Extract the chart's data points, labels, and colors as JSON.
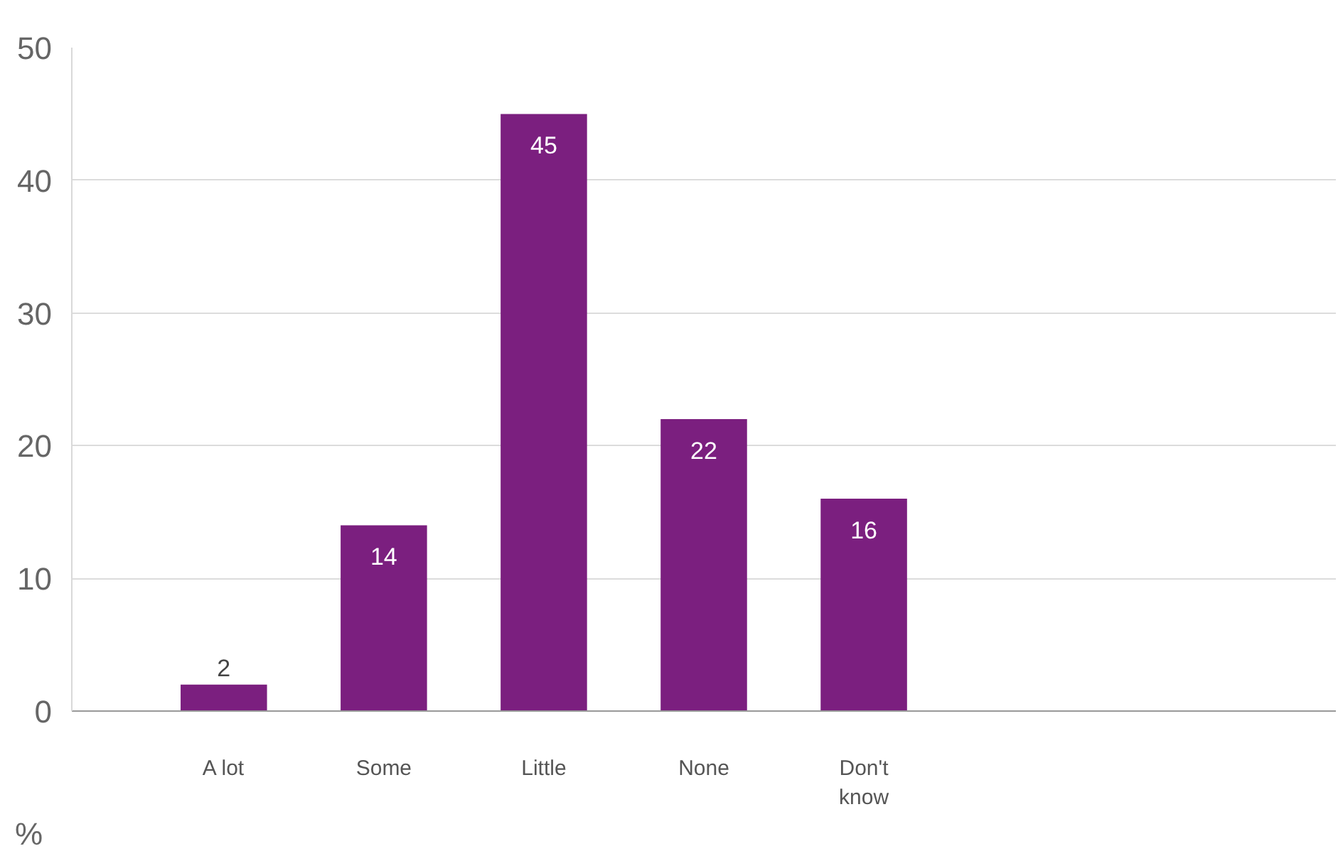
{
  "chart_data": {
    "type": "bar",
    "ylabel": "%",
    "categories": [
      "A lot",
      "Some",
      "Little",
      "None",
      "Don't know"
    ],
    "values": [
      2,
      14,
      45,
      22,
      16
    ],
    "color": "#7b1f7f",
    "ylim": [
      0,
      50
    ],
    "yticks": [
      0,
      10,
      20,
      30,
      40,
      50
    ],
    "grid": "y",
    "data_labels": true
  }
}
